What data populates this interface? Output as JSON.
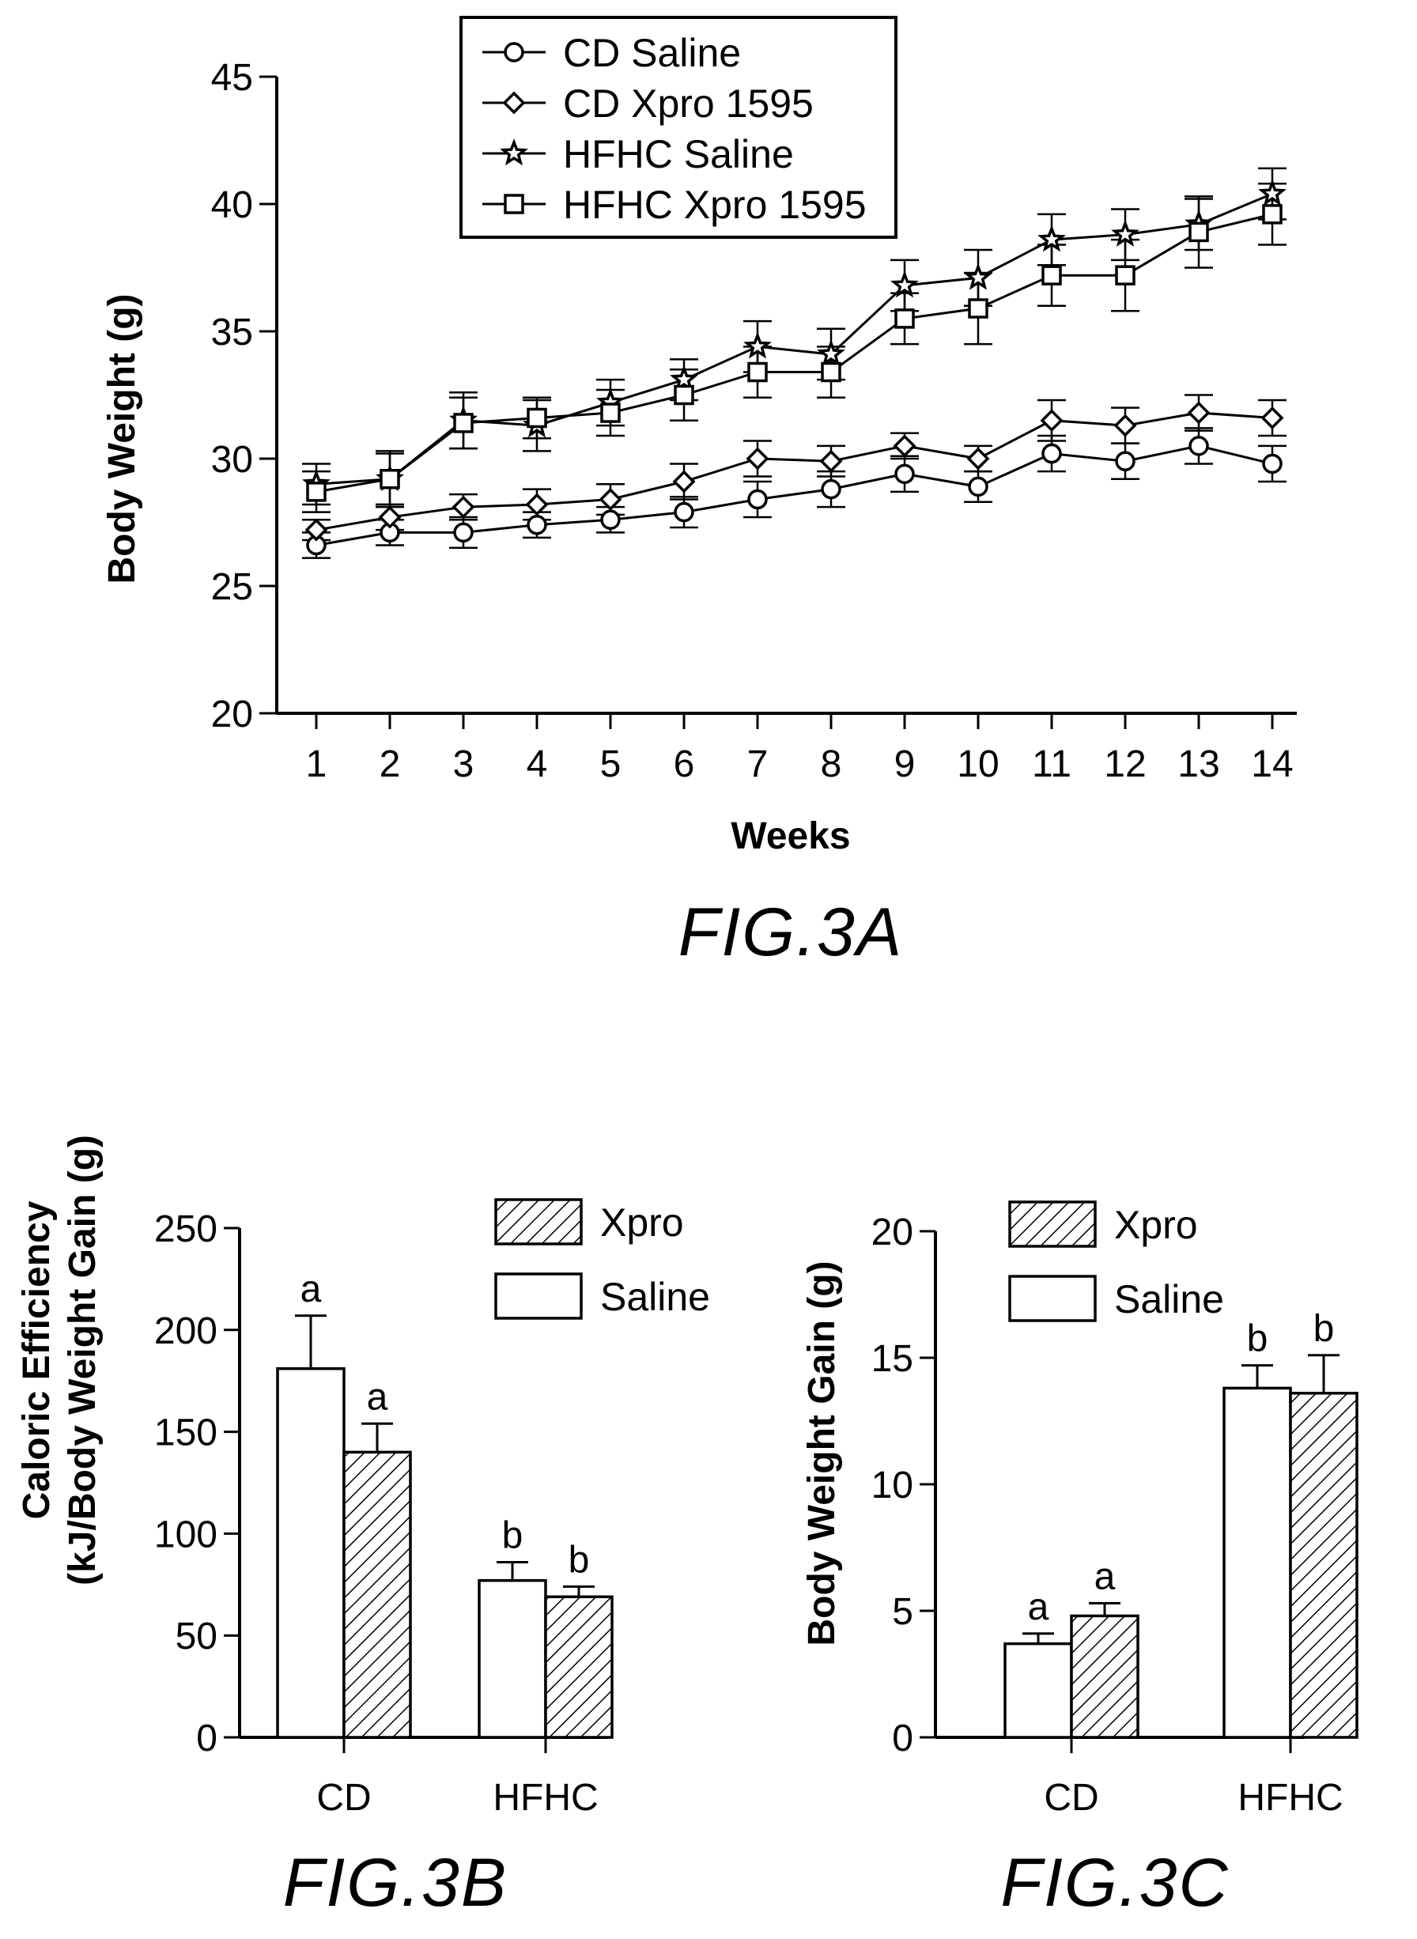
{
  "chart_data": [
    {
      "type": "line",
      "figure": "FIG.3A",
      "title": "",
      "xlabel": "Weeks",
      "ylabel": "Body Weight (g)",
      "x": [
        1,
        2,
        3,
        4,
        5,
        6,
        7,
        8,
        9,
        10,
        11,
        12,
        13,
        14
      ],
      "ylim": [
        20,
        45
      ],
      "yticks": [
        20,
        25,
        30,
        35,
        40,
        45
      ],
      "legend": "top-center",
      "series": [
        {
          "name": "CD Saline",
          "marker": "circle",
          "values": [
            26.6,
            27.1,
            27.1,
            27.4,
            27.6,
            27.9,
            28.4,
            28.8,
            29.4,
            28.9,
            30.2,
            29.9,
            30.5,
            29.8
          ],
          "errors": [
            0.5,
            0.5,
            0.6,
            0.5,
            0.5,
            0.6,
            0.7,
            0.7,
            0.7,
            0.6,
            0.7,
            0.7,
            0.7,
            0.7
          ]
        },
        {
          "name": "CD Xpro 1595",
          "marker": "diamond",
          "values": [
            27.2,
            27.7,
            28.1,
            28.2,
            28.4,
            29.1,
            30.0,
            29.9,
            30.5,
            30.0,
            31.5,
            31.3,
            31.8,
            31.6
          ],
          "errors": [
            0.4,
            0.5,
            0.5,
            0.6,
            0.6,
            0.7,
            0.7,
            0.6,
            0.5,
            0.5,
            0.8,
            0.7,
            0.7,
            0.7
          ]
        },
        {
          "name": "HFHC Saline",
          "marker": "star",
          "values": [
            29.0,
            29.2,
            31.5,
            31.3,
            32.2,
            33.1,
            34.4,
            34.1,
            36.8,
            37.1,
            38.6,
            38.8,
            39.2,
            40.4
          ],
          "errors": [
            0.8,
            1.1,
            1.1,
            1.0,
            0.9,
            0.8,
            1.0,
            1.0,
            1.0,
            1.1,
            1.0,
            1.0,
            1.0,
            1.0
          ]
        },
        {
          "name": "HFHC Xpro 1595",
          "marker": "square",
          "values": [
            28.7,
            29.2,
            31.4,
            31.6,
            31.8,
            32.5,
            33.4,
            33.4,
            35.5,
            35.9,
            37.2,
            37.2,
            38.9,
            39.6
          ],
          "errors": [
            0.8,
            1.0,
            1.0,
            0.8,
            0.9,
            1.0,
            1.0,
            1.0,
            1.0,
            1.4,
            1.2,
            1.4,
            1.4,
            1.2
          ]
        }
      ]
    },
    {
      "type": "bar",
      "figure": "FIG.3B",
      "title": "",
      "xlabel": "",
      "ylabel": "Caloric Efficiency (kJ/Body Weight Gain (g)",
      "ylabel_lines": [
        "Caloric Efficiency",
        "(kJ/Body Weight Gain (g)"
      ],
      "categories": [
        "CD",
        "HFHC"
      ],
      "ylim": [
        0,
        250
      ],
      "yticks": [
        0,
        50,
        100,
        150,
        200,
        250
      ],
      "legend": "top-right",
      "series": [
        {
          "name": "Saline",
          "pattern": "open",
          "values": [
            181,
            77
          ],
          "errors": [
            26,
            9
          ],
          "labels": [
            "a",
            "b"
          ]
        },
        {
          "name": "Xpro",
          "pattern": "hatched",
          "values": [
            140,
            69
          ],
          "errors": [
            14,
            5
          ],
          "labels": [
            "a",
            "b"
          ]
        }
      ]
    },
    {
      "type": "bar",
      "figure": "FIG.3C",
      "title": "",
      "xlabel": "",
      "ylabel": "Body Weight Gain (g)",
      "categories": [
        "CD",
        "HFHC"
      ],
      "ylim": [
        0,
        20
      ],
      "yticks": [
        0,
        5,
        10,
        15,
        20
      ],
      "legend": "top-center",
      "series": [
        {
          "name": "Saline",
          "pattern": "open",
          "values": [
            3.7,
            13.8
          ],
          "errors": [
            0.4,
            0.9
          ],
          "labels": [
            "a",
            "b"
          ]
        },
        {
          "name": "Xpro",
          "pattern": "hatched",
          "values": [
            4.8,
            13.6
          ],
          "errors": [
            0.5,
            1.5
          ],
          "labels": [
            "a",
            "b"
          ]
        }
      ]
    }
  ]
}
